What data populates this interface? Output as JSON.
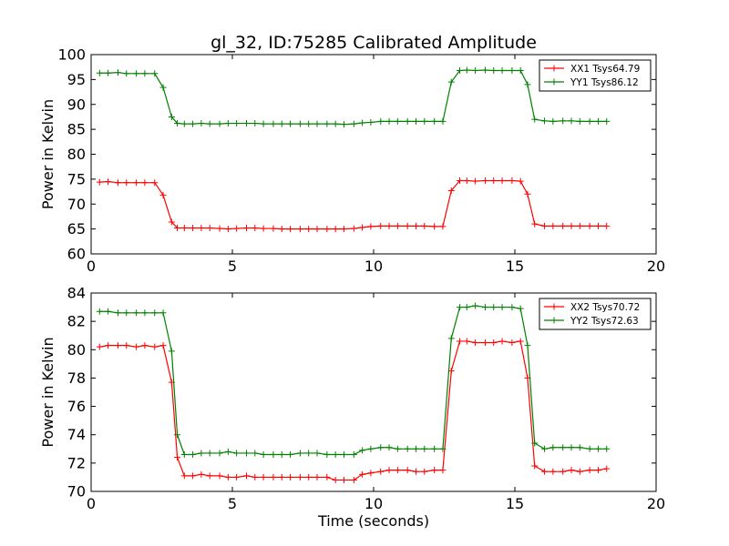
{
  "chart_data": [
    {
      "type": "line",
      "title": "gl_32, ID:75285 Calibrated Amplitude",
      "xlabel": "",
      "ylabel": "Power in Kelvin",
      "xlim": [
        0,
        20
      ],
      "ylim": [
        60,
        100
      ],
      "xticks": [
        0,
        5,
        10,
        15,
        20
      ],
      "yticks": [
        60,
        65,
        70,
        75,
        80,
        85,
        90,
        95,
        100
      ],
      "grid": false,
      "legend": "top-right",
      "x": [
        0.3,
        0.6,
        0.95,
        1.25,
        1.6,
        1.9,
        2.25,
        2.55,
        2.85,
        3.05,
        3.3,
        3.6,
        3.9,
        4.2,
        4.55,
        4.85,
        5.15,
        5.5,
        5.8,
        6.1,
        6.45,
        6.75,
        7.05,
        7.4,
        7.7,
        8.0,
        8.35,
        8.65,
        8.95,
        9.3,
        9.6,
        9.9,
        10.25,
        10.55,
        10.85,
        11.2,
        11.5,
        11.8,
        12.15,
        12.45,
        12.75,
        13.05,
        13.3,
        13.6,
        13.95,
        14.25,
        14.55,
        14.9,
        15.2,
        15.45,
        15.7,
        16.05,
        16.35,
        16.7,
        17.0,
        17.3,
        17.65,
        17.95,
        18.25
      ],
      "series": [
        {
          "name": "XX1 Tsys64.79",
          "color": "#ff0000",
          "values": [
            74.4,
            74.5,
            74.3,
            74.3,
            74.3,
            74.3,
            74.3,
            71.8,
            66.4,
            65.2,
            65.2,
            65.2,
            65.2,
            65.2,
            65.1,
            65.0,
            65.1,
            65.2,
            65.2,
            65.1,
            65.1,
            65.0,
            65.0,
            65.0,
            65.0,
            65.0,
            65.0,
            65.0,
            65.0,
            65.1,
            65.3,
            65.5,
            65.6,
            65.6,
            65.6,
            65.6,
            65.6,
            65.6,
            65.5,
            65.5,
            72.7,
            74.7,
            74.7,
            74.6,
            74.7,
            74.7,
            74.7,
            74.7,
            74.6,
            72.0,
            66.0,
            65.6,
            65.6,
            65.6,
            65.6,
            65.6,
            65.6,
            65.6,
            65.6
          ]
        },
        {
          "name": "YY1 Tsys86.12",
          "color": "#008000",
          "values": [
            96.3,
            96.3,
            96.4,
            96.2,
            96.2,
            96.2,
            96.2,
            93.4,
            87.5,
            86.2,
            86.1,
            86.1,
            86.2,
            86.1,
            86.1,
            86.2,
            86.2,
            86.2,
            86.2,
            86.1,
            86.1,
            86.1,
            86.1,
            86.1,
            86.1,
            86.1,
            86.1,
            86.1,
            86.0,
            86.1,
            86.3,
            86.4,
            86.6,
            86.6,
            86.6,
            86.6,
            86.6,
            86.6,
            86.6,
            86.6,
            94.5,
            96.8,
            96.9,
            96.8,
            96.9,
            96.8,
            96.8,
            96.8,
            96.8,
            94.0,
            87.0,
            86.7,
            86.6,
            86.7,
            86.7,
            86.6,
            86.6,
            86.6,
            86.6
          ]
        }
      ]
    },
    {
      "type": "line",
      "title": "",
      "xlabel": "Time (seconds)",
      "ylabel": "Power in Kelvin",
      "xlim": [
        0,
        20
      ],
      "ylim": [
        70,
        84
      ],
      "xticks": [
        0,
        5,
        10,
        15,
        20
      ],
      "yticks": [
        70,
        72,
        74,
        76,
        78,
        80,
        82,
        84
      ],
      "grid": false,
      "legend": "top-right",
      "x": [
        0.3,
        0.6,
        0.95,
        1.25,
        1.6,
        1.9,
        2.25,
        2.55,
        2.85,
        3.05,
        3.3,
        3.6,
        3.9,
        4.2,
        4.55,
        4.85,
        5.15,
        5.5,
        5.8,
        6.1,
        6.45,
        6.75,
        7.05,
        7.4,
        7.7,
        8.0,
        8.35,
        8.65,
        8.95,
        9.3,
        9.6,
        9.9,
        10.25,
        10.55,
        10.85,
        11.2,
        11.5,
        11.8,
        12.15,
        12.45,
        12.75,
        13.05,
        13.3,
        13.6,
        13.95,
        14.25,
        14.55,
        14.9,
        15.2,
        15.45,
        15.7,
        16.05,
        16.35,
        16.7,
        17.0,
        17.3,
        17.65,
        17.95,
        18.25
      ],
      "series": [
        {
          "name": "XX2 Tsys70.72",
          "color": "#ff0000",
          "values": [
            80.2,
            80.3,
            80.3,
            80.3,
            80.2,
            80.3,
            80.2,
            80.3,
            77.7,
            72.4,
            71.1,
            71.1,
            71.2,
            71.1,
            71.1,
            71.0,
            71.0,
            71.1,
            71.0,
            71.0,
            71.0,
            71.0,
            71.0,
            71.0,
            71.0,
            71.0,
            71.0,
            70.8,
            70.8,
            70.8,
            71.2,
            71.3,
            71.4,
            71.5,
            71.5,
            71.5,
            71.4,
            71.4,
            71.5,
            71.5,
            78.5,
            80.6,
            80.6,
            80.5,
            80.5,
            80.5,
            80.6,
            80.5,
            80.6,
            78.0,
            71.8,
            71.4,
            71.4,
            71.4,
            71.5,
            71.4,
            71.5,
            71.5,
            71.6
          ]
        },
        {
          "name": "YY2 Tsys72.63",
          "color": "#008000",
          "values": [
            82.7,
            82.7,
            82.6,
            82.6,
            82.6,
            82.6,
            82.6,
            82.6,
            79.9,
            74.0,
            72.6,
            72.6,
            72.7,
            72.7,
            72.7,
            72.8,
            72.7,
            72.7,
            72.7,
            72.6,
            72.6,
            72.6,
            72.6,
            72.7,
            72.7,
            72.7,
            72.6,
            72.6,
            72.6,
            72.6,
            72.9,
            73.0,
            73.1,
            73.1,
            73.0,
            73.0,
            73.0,
            73.0,
            73.0,
            73.0,
            80.8,
            83.0,
            83.0,
            83.1,
            83.0,
            83.0,
            83.0,
            83.0,
            82.9,
            80.3,
            73.4,
            73.0,
            73.1,
            73.1,
            73.1,
            73.1,
            73.0,
            73.0,
            73.0
          ]
        }
      ]
    }
  ]
}
